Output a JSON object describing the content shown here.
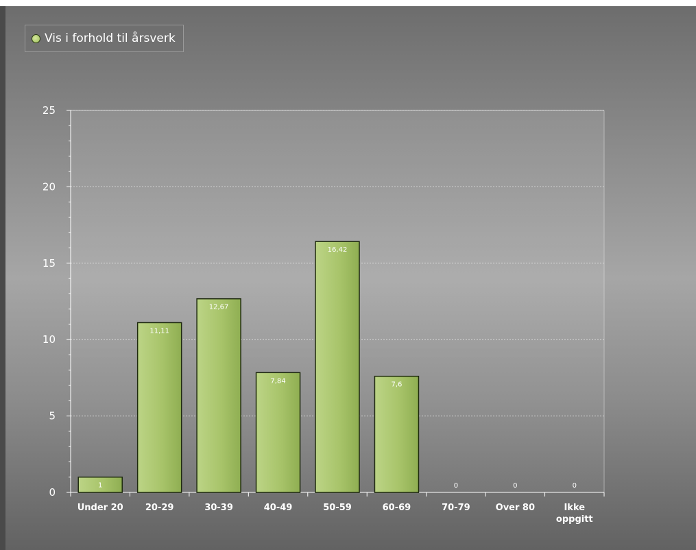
{
  "legend": {
    "label": "Vis i forhold til årsverk",
    "dot_color": "#a8c46a"
  },
  "chart_data": {
    "type": "bar",
    "categories": [
      "Under 20",
      "20-29",
      "30-39",
      "40-49",
      "50-59",
      "60-69",
      "70-79",
      "Over 80",
      "Ikke oppgitt"
    ],
    "series": [
      {
        "name": "Vis i forhold til årsverk",
        "values": [
          1,
          11.11,
          12.67,
          7.84,
          16.42,
          7.6,
          0,
          0,
          0
        ],
        "data_labels": [
          "1",
          "11,11",
          "12,67",
          "7,84",
          "16,42",
          "7,6",
          "0",
          "0",
          "0"
        ],
        "color": "#a8c46a"
      }
    ],
    "ylim": [
      0,
      25
    ],
    "yticks": [
      0,
      5,
      10,
      15,
      20,
      25
    ],
    "title": "",
    "xlabel": "",
    "ylabel": "",
    "grid": true,
    "legend_placement": "top-left"
  }
}
